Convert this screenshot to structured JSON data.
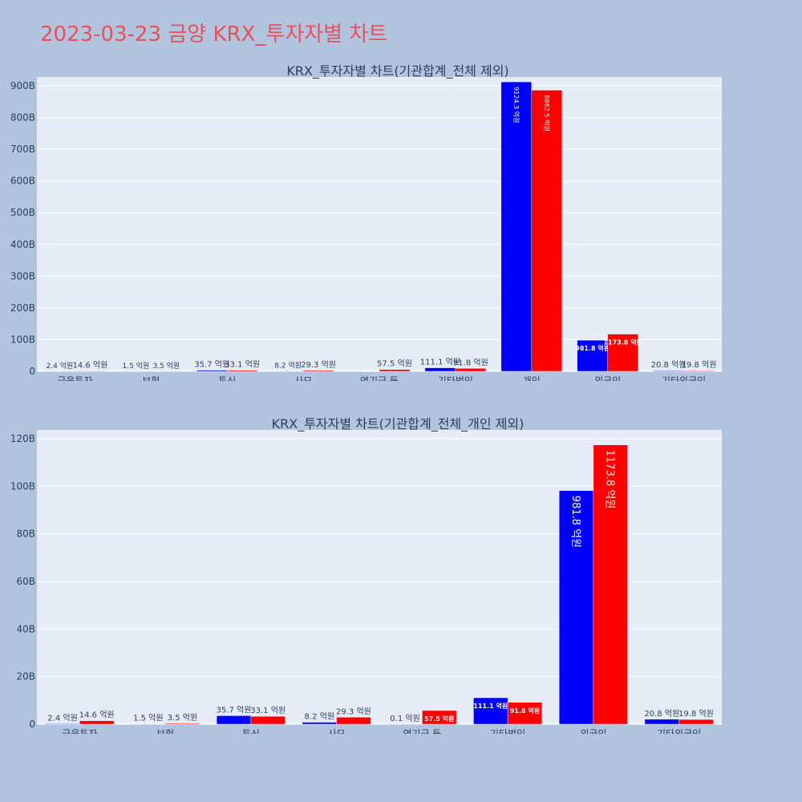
{
  "page_title": "2023-03-23 금양 KRX_투자자별 차트",
  "colors": {
    "background": "#b0c4de",
    "plot_bg": "#e5ecf6",
    "title": "#e8505b",
    "series_buy": "#0000ff",
    "series_sell": "#ff0000"
  },
  "chart_data": [
    {
      "type": "bar",
      "title": "KRX_투자자별 차트(기관합계_전체 제외)",
      "categories": [
        "금융투자",
        "보험",
        "투신",
        "사모",
        "연기금 등",
        "기타법인",
        "개인",
        "외국인",
        "기타외국인"
      ],
      "series": [
        {
          "values": [
            0.24,
            0.15,
            3.57,
            0.82,
            0.0,
            11.11,
            912.43,
            98.18,
            2.08
          ],
          "labels": [
            "2.4 억원",
            "1.5 억원",
            "35.7 억원",
            "8.2 억원",
            "",
            "111.1 억원",
            "9124.3 억원",
            "981.8 억원",
            "20.8 억원"
          ]
        },
        {
          "values": [
            1.46,
            0.35,
            3.31,
            2.93,
            5.75,
            9.18,
            886.25,
            117.38,
            1.98
          ],
          "labels": [
            "14.6 억원",
            "3.5 억원",
            "33.1 억원",
            "29.3 억원",
            "57.5 억원",
            "91.8 억원",
            "8862.5 억원",
            "1173.8 억원",
            "19.8 억원"
          ]
        }
      ],
      "ylim": [
        0,
        900
      ],
      "yticks": [
        0,
        100,
        200,
        300,
        400,
        500,
        600,
        700,
        800,
        900
      ],
      "ytick_labels": [
        "0",
        "100B",
        "200B",
        "300B",
        "400B",
        "500B",
        "600B",
        "700B",
        "800B",
        "900B"
      ],
      "grid": true,
      "legend": "none"
    },
    {
      "type": "bar",
      "title": "KRX_투자자별 차트(기관합계_전체_개인 제외)",
      "categories": [
        "금융투자",
        "보험",
        "투신",
        "사모",
        "연기금 등",
        "기타법인",
        "외국인",
        "기타외국인"
      ],
      "series": [
        {
          "values": [
            0.24,
            0.15,
            3.57,
            0.82,
            0.01,
            11.11,
            98.18,
            2.08
          ],
          "labels": [
            "2.4 억원",
            "1.5 억원",
            "35.7 억원",
            "8.2 억원",
            "0.1 억원",
            "111.1 억원",
            "981.8 억원",
            "20.8 억원"
          ]
        },
        {
          "values": [
            1.46,
            0.35,
            3.31,
            2.93,
            5.75,
            9.18,
            117.38,
            1.98
          ],
          "labels": [
            "14.6 억원",
            "3.5 억원",
            "33.1 억원",
            "29.3 억원",
            "57.5 억원",
            "91.8 억원",
            "1173.8 억원",
            "19.8 억원"
          ]
        }
      ],
      "ylim": [
        0,
        120
      ],
      "yticks": [
        0,
        20,
        40,
        60,
        80,
        100,
        120
      ],
      "ytick_labels": [
        "0",
        "20B",
        "40B",
        "60B",
        "80B",
        "100B",
        "120B"
      ],
      "grid": true,
      "legend": "none"
    }
  ]
}
